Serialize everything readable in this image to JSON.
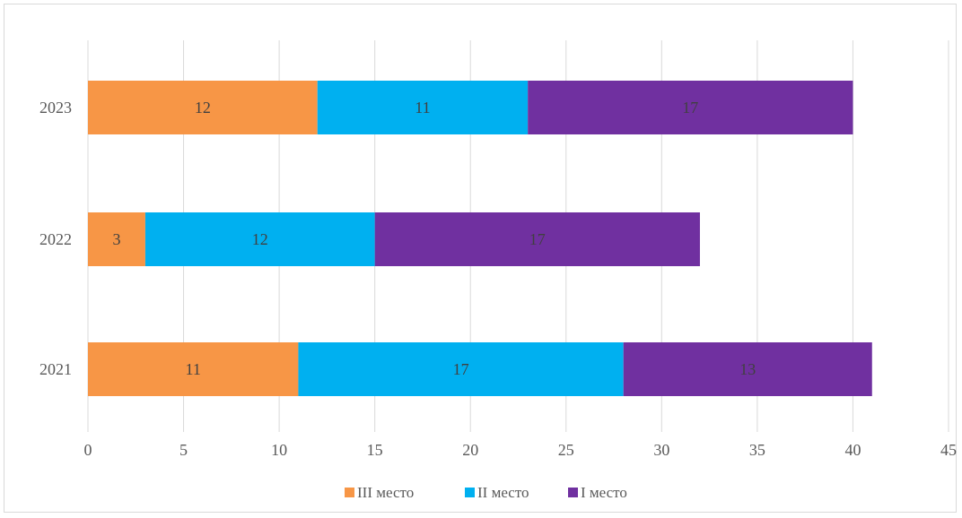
{
  "chart_data": {
    "type": "bar",
    "orientation": "horizontal",
    "stacked": true,
    "categories": [
      "2023",
      "2022",
      "2021"
    ],
    "series": [
      {
        "name": "III место",
        "color": "#F79646",
        "values": [
          12,
          3,
          11
        ]
      },
      {
        "name": "II место",
        "color": "#00B0F0",
        "values": [
          11,
          12,
          17
        ]
      },
      {
        "name": "I место",
        "color": "#7030A0",
        "values": [
          17,
          17,
          13
        ]
      }
    ],
    "xlim": [
      0,
      45
    ],
    "xticks": [
      0,
      5,
      10,
      15,
      20,
      25,
      30,
      35,
      40,
      45
    ],
    "grid": "vertical",
    "legend": "bottom",
    "data_labels": true,
    "title": "",
    "xlabel": "",
    "ylabel": ""
  }
}
